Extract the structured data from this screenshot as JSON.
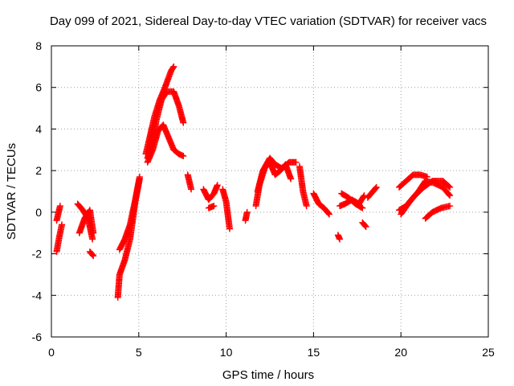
{
  "chart_data": {
    "type": "scatter",
    "title": "Day 099 of 2021, Sidereal Day-to-day VTEC variation (SDTVAR) for receiver vacs",
    "xlabel": "GPS time / hours",
    "ylabel": "SDTVAR / TECUs",
    "xlim": [
      0,
      25
    ],
    "ylim": [
      -6,
      8
    ],
    "grid": true,
    "marker": "plus",
    "series_color": "#ff0000",
    "x_ticks": [
      0,
      5,
      10,
      15,
      20,
      25
    ],
    "y_ticks": [
      -6,
      -4,
      -2,
      0,
      2,
      4,
      6,
      8
    ],
    "x_tick_labels": [
      "0",
      "5",
      "10",
      "15",
      "20",
      "25"
    ],
    "y_tick_labels": [
      "-6",
      "-4",
      "-2",
      "0",
      "2",
      "4",
      "6",
      "8"
    ],
    "series": [
      {
        "name": "SDTVAR",
        "segments": [
          {
            "x": [
              0.3,
              0.5
            ],
            "y": [
              -0.4,
              0.3
            ]
          },
          {
            "x": [
              0.3,
              0.45,
              0.6
            ],
            "y": [
              -1.9,
              -1.2,
              -0.6
            ]
          },
          {
            "x": [
              1.5,
              1.8,
              2.1,
              2.35
            ],
            "y": [
              0.4,
              0.1,
              -0.3,
              -1.3
            ]
          },
          {
            "x": [
              1.6,
              1.9,
              2.2,
              2.4
            ],
            "y": [
              -1.0,
              -0.3,
              0.1,
              -1.0
            ]
          },
          {
            "x": [
              2.2,
              2.4
            ],
            "y": [
              -1.9,
              -2.1
            ]
          },
          {
            "x": [
              3.8,
              3.9,
              4.2,
              4.5,
              4.8,
              5.05
            ],
            "y": [
              -4.1,
              -3.0,
              -2.3,
              -1.3,
              0.5,
              1.6
            ]
          },
          {
            "x": [
              3.9,
              4.2,
              4.5,
              4.8,
              5.05
            ],
            "y": [
              -1.8,
              -1.3,
              -0.6,
              0.6,
              1.7
            ]
          },
          {
            "x": [
              5.4,
              5.6,
              5.9,
              6.2,
              6.5,
              6.85,
              7.0
            ],
            "y": [
              2.8,
              3.5,
              4.6,
              5.4,
              6.0,
              6.8,
              7.0
            ]
          },
          {
            "x": [
              5.5,
              5.8,
              6.0,
              6.3,
              6.6,
              7.0,
              7.3,
              7.55
            ],
            "y": [
              2.6,
              3.4,
              4.4,
              5.4,
              5.8,
              5.8,
              5.1,
              4.3
            ]
          },
          {
            "x": [
              5.5,
              5.8,
              6.1,
              6.4,
              6.7,
              7.0,
              7.3,
              7.55
            ],
            "y": [
              2.4,
              3.0,
              3.9,
              4.2,
              3.6,
              3.0,
              2.8,
              2.7
            ]
          },
          {
            "x": [
              7.8,
              8.0
            ],
            "y": [
              1.8,
              1.1
            ]
          },
          {
            "x": [
              8.7,
              9.0,
              9.3,
              9.5
            ],
            "y": [
              1.1,
              0.6,
              0.9,
              1.3
            ]
          },
          {
            "x": [
              9.0,
              9.3
            ],
            "y": [
              0.2,
              0.3
            ]
          },
          {
            "x": [
              9.8,
              10.0,
              10.2
            ],
            "y": [
              1.1,
              0.5,
              -0.8
            ]
          },
          {
            "x": [
              11.1,
              11.2
            ],
            "y": [
              -0.4,
              0.0
            ]
          },
          {
            "x": [
              11.7,
              11.9,
              12.2,
              12.5,
              12.8,
              13.1,
              13.4,
              13.7
            ],
            "y": [
              0.3,
              1.3,
              2.1,
              2.4,
              1.8,
              2.0,
              2.3,
              1.6
            ]
          },
          {
            "x": [
              11.8,
              12.1,
              12.5,
              12.8,
              13.2,
              13.6,
              14.0
            ],
            "y": [
              1.0,
              2.0,
              2.6,
              2.3,
              2.1,
              2.4,
              2.4
            ]
          },
          {
            "x": [
              14.2,
              14.4,
              14.6
            ],
            "y": [
              2.2,
              1.0,
              0.3
            ]
          },
          {
            "x": [
              15.0,
              15.3,
              15.6,
              15.9
            ],
            "y": [
              0.9,
              0.4,
              0.2,
              -0.1
            ]
          },
          {
            "x": [
              16.4,
              16.5
            ],
            "y": [
              -1.1,
              -1.3
            ]
          },
          {
            "x": [
              16.5,
              16.8,
              17.2,
              17.6,
              17.9
            ],
            "y": [
              0.3,
              0.4,
              0.6,
              0.4,
              0.8
            ]
          },
          {
            "x": [
              16.6,
              17.0,
              17.4,
              17.8
            ],
            "y": [
              0.9,
              0.7,
              0.4,
              0.2
            ]
          },
          {
            "x": [
              17.8,
              18.0
            ],
            "y": [
              -0.5,
              -0.7
            ]
          },
          {
            "x": [
              18.1,
              18.4,
              18.6
            ],
            "y": [
              0.7,
              1.0,
              1.2
            ]
          },
          {
            "x": [
              19.9,
              20.3,
              20.7,
              21.1,
              21.5
            ],
            "y": [
              1.2,
              1.5,
              1.8,
              1.8,
              1.7
            ]
          },
          {
            "x": [
              19.9,
              20.3,
              20.8,
              21.3,
              21.8,
              22.4,
              22.8
            ],
            "y": [
              0.1,
              0.3,
              0.8,
              1.2,
              1.5,
              1.5,
              1.2
            ]
          },
          {
            "x": [
              20.0,
              20.5,
              21.0,
              21.4,
              21.9,
              22.4,
              22.8
            ],
            "y": [
              -0.1,
              0.5,
              1.0,
              1.5,
              1.4,
              1.2,
              0.8
            ]
          },
          {
            "x": [
              21.4,
              21.8,
              22.3,
              22.8
            ],
            "y": [
              -0.3,
              0.0,
              0.2,
              0.3
            ]
          }
        ]
      }
    ]
  }
}
